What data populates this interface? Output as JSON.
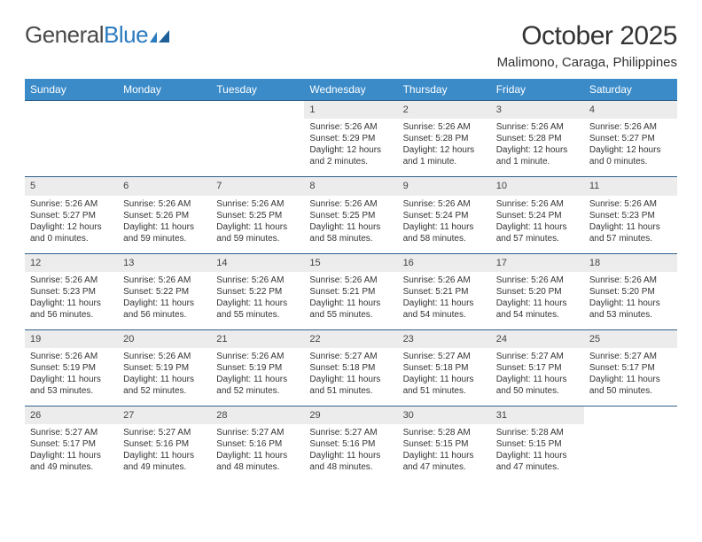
{
  "brand": {
    "part1": "General",
    "part2": "Blue"
  },
  "title": "October 2025",
  "location": "Malimono, Caraga, Philippines",
  "style": {
    "header_bg": "#3b8bc9",
    "header_text": "#ffffff",
    "daynum_bg": "#ececec",
    "row_border": "#2f5f8a",
    "page_bg": "#ffffff",
    "text_color": "#333333",
    "title_fontsize": 30,
    "location_fontsize": 15,
    "dayheader_fontsize": 12,
    "cell_fontsize": 10,
    "logo_accent": "#2b7bbf"
  },
  "weekdays": [
    "Sunday",
    "Monday",
    "Tuesday",
    "Wednesday",
    "Thursday",
    "Friday",
    "Saturday"
  ],
  "weeks": [
    [
      null,
      null,
      null,
      {
        "n": "1",
        "sr": "Sunrise: 5:26 AM",
        "ss": "Sunset: 5:29 PM",
        "dl": "Daylight: 12 hours and 2 minutes."
      },
      {
        "n": "2",
        "sr": "Sunrise: 5:26 AM",
        "ss": "Sunset: 5:28 PM",
        "dl": "Daylight: 12 hours and 1 minute."
      },
      {
        "n": "3",
        "sr": "Sunrise: 5:26 AM",
        "ss": "Sunset: 5:28 PM",
        "dl": "Daylight: 12 hours and 1 minute."
      },
      {
        "n": "4",
        "sr": "Sunrise: 5:26 AM",
        "ss": "Sunset: 5:27 PM",
        "dl": "Daylight: 12 hours and 0 minutes."
      }
    ],
    [
      {
        "n": "5",
        "sr": "Sunrise: 5:26 AM",
        "ss": "Sunset: 5:27 PM",
        "dl": "Daylight: 12 hours and 0 minutes."
      },
      {
        "n": "6",
        "sr": "Sunrise: 5:26 AM",
        "ss": "Sunset: 5:26 PM",
        "dl": "Daylight: 11 hours and 59 minutes."
      },
      {
        "n": "7",
        "sr": "Sunrise: 5:26 AM",
        "ss": "Sunset: 5:25 PM",
        "dl": "Daylight: 11 hours and 59 minutes."
      },
      {
        "n": "8",
        "sr": "Sunrise: 5:26 AM",
        "ss": "Sunset: 5:25 PM",
        "dl": "Daylight: 11 hours and 58 minutes."
      },
      {
        "n": "9",
        "sr": "Sunrise: 5:26 AM",
        "ss": "Sunset: 5:24 PM",
        "dl": "Daylight: 11 hours and 58 minutes."
      },
      {
        "n": "10",
        "sr": "Sunrise: 5:26 AM",
        "ss": "Sunset: 5:24 PM",
        "dl": "Daylight: 11 hours and 57 minutes."
      },
      {
        "n": "11",
        "sr": "Sunrise: 5:26 AM",
        "ss": "Sunset: 5:23 PM",
        "dl": "Daylight: 11 hours and 57 minutes."
      }
    ],
    [
      {
        "n": "12",
        "sr": "Sunrise: 5:26 AM",
        "ss": "Sunset: 5:23 PM",
        "dl": "Daylight: 11 hours and 56 minutes."
      },
      {
        "n": "13",
        "sr": "Sunrise: 5:26 AM",
        "ss": "Sunset: 5:22 PM",
        "dl": "Daylight: 11 hours and 56 minutes."
      },
      {
        "n": "14",
        "sr": "Sunrise: 5:26 AM",
        "ss": "Sunset: 5:22 PM",
        "dl": "Daylight: 11 hours and 55 minutes."
      },
      {
        "n": "15",
        "sr": "Sunrise: 5:26 AM",
        "ss": "Sunset: 5:21 PM",
        "dl": "Daylight: 11 hours and 55 minutes."
      },
      {
        "n": "16",
        "sr": "Sunrise: 5:26 AM",
        "ss": "Sunset: 5:21 PM",
        "dl": "Daylight: 11 hours and 54 minutes."
      },
      {
        "n": "17",
        "sr": "Sunrise: 5:26 AM",
        "ss": "Sunset: 5:20 PM",
        "dl": "Daylight: 11 hours and 54 minutes."
      },
      {
        "n": "18",
        "sr": "Sunrise: 5:26 AM",
        "ss": "Sunset: 5:20 PM",
        "dl": "Daylight: 11 hours and 53 minutes."
      }
    ],
    [
      {
        "n": "19",
        "sr": "Sunrise: 5:26 AM",
        "ss": "Sunset: 5:19 PM",
        "dl": "Daylight: 11 hours and 53 minutes."
      },
      {
        "n": "20",
        "sr": "Sunrise: 5:26 AM",
        "ss": "Sunset: 5:19 PM",
        "dl": "Daylight: 11 hours and 52 minutes."
      },
      {
        "n": "21",
        "sr": "Sunrise: 5:26 AM",
        "ss": "Sunset: 5:19 PM",
        "dl": "Daylight: 11 hours and 52 minutes."
      },
      {
        "n": "22",
        "sr": "Sunrise: 5:27 AM",
        "ss": "Sunset: 5:18 PM",
        "dl": "Daylight: 11 hours and 51 minutes."
      },
      {
        "n": "23",
        "sr": "Sunrise: 5:27 AM",
        "ss": "Sunset: 5:18 PM",
        "dl": "Daylight: 11 hours and 51 minutes."
      },
      {
        "n": "24",
        "sr": "Sunrise: 5:27 AM",
        "ss": "Sunset: 5:17 PM",
        "dl": "Daylight: 11 hours and 50 minutes."
      },
      {
        "n": "25",
        "sr": "Sunrise: 5:27 AM",
        "ss": "Sunset: 5:17 PM",
        "dl": "Daylight: 11 hours and 50 minutes."
      }
    ],
    [
      {
        "n": "26",
        "sr": "Sunrise: 5:27 AM",
        "ss": "Sunset: 5:17 PM",
        "dl": "Daylight: 11 hours and 49 minutes."
      },
      {
        "n": "27",
        "sr": "Sunrise: 5:27 AM",
        "ss": "Sunset: 5:16 PM",
        "dl": "Daylight: 11 hours and 49 minutes."
      },
      {
        "n": "28",
        "sr": "Sunrise: 5:27 AM",
        "ss": "Sunset: 5:16 PM",
        "dl": "Daylight: 11 hours and 48 minutes."
      },
      {
        "n": "29",
        "sr": "Sunrise: 5:27 AM",
        "ss": "Sunset: 5:16 PM",
        "dl": "Daylight: 11 hours and 48 minutes."
      },
      {
        "n": "30",
        "sr": "Sunrise: 5:28 AM",
        "ss": "Sunset: 5:15 PM",
        "dl": "Daylight: 11 hours and 47 minutes."
      },
      {
        "n": "31",
        "sr": "Sunrise: 5:28 AM",
        "ss": "Sunset: 5:15 PM",
        "dl": "Daylight: 11 hours and 47 minutes."
      },
      null
    ]
  ]
}
